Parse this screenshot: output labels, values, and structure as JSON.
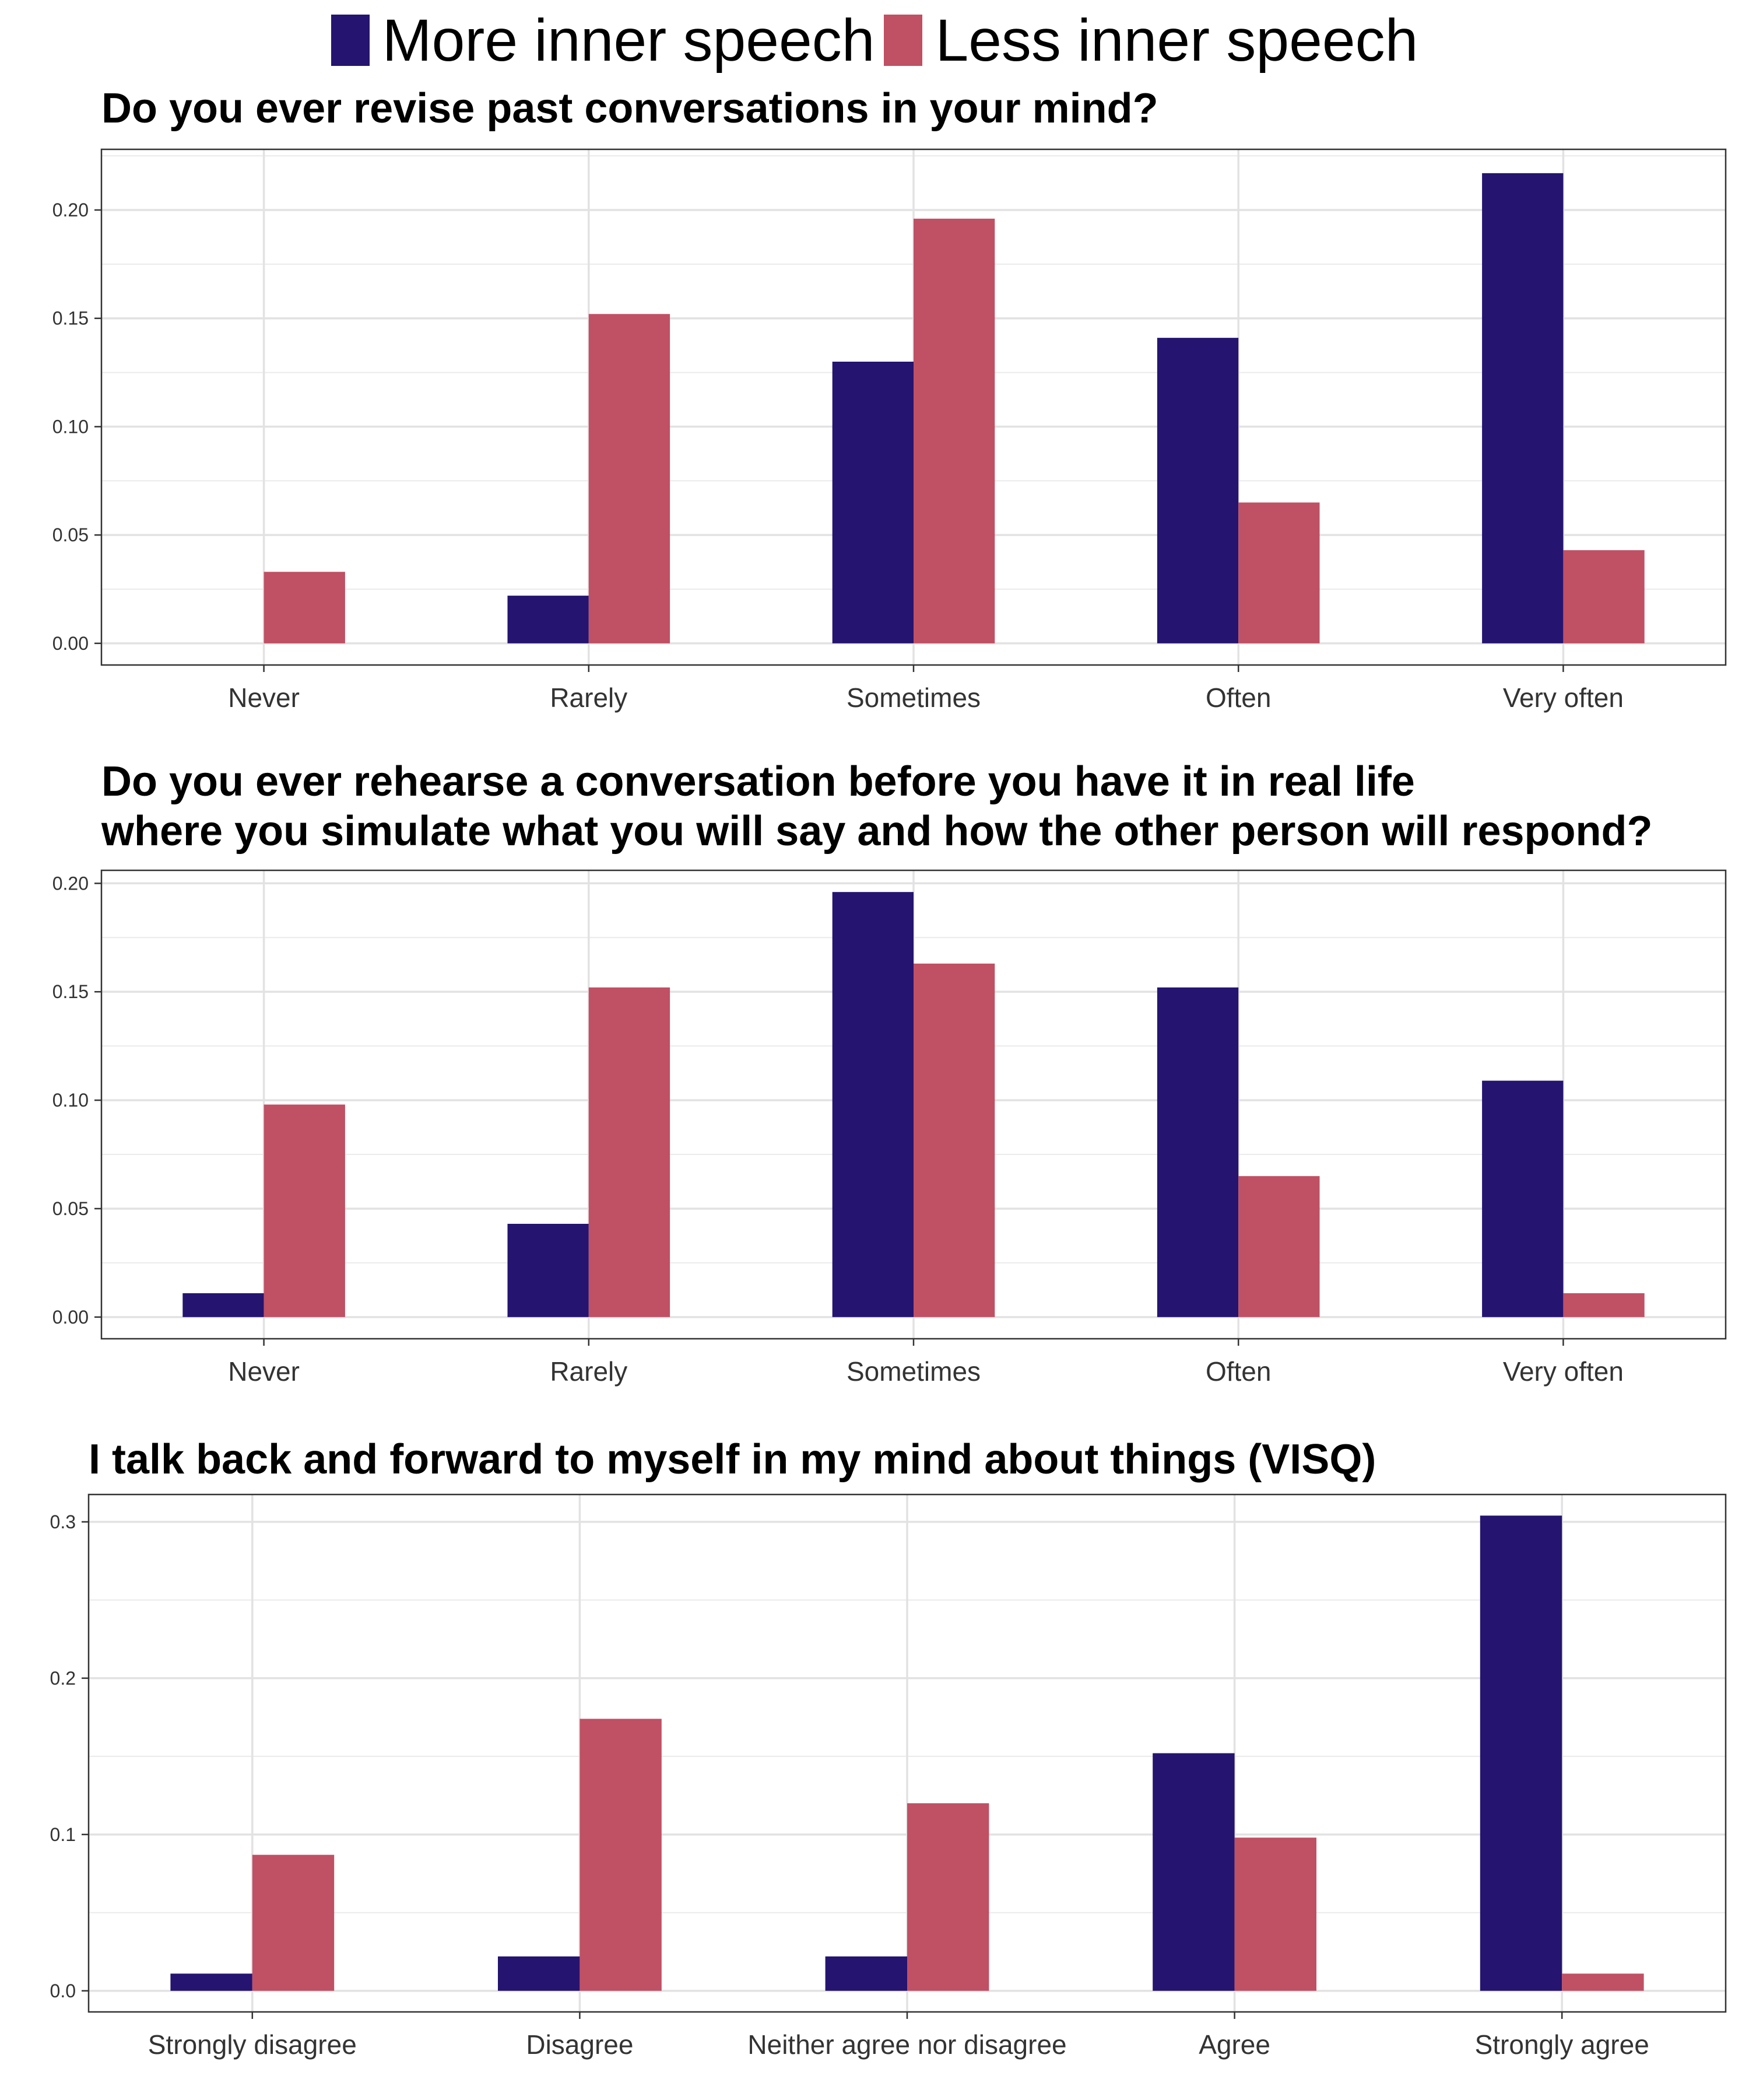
{
  "legend": {
    "position": "top",
    "items": [
      {
        "label": "More inner speech",
        "color": "#251470"
      },
      {
        "label": "Less inner speech",
        "color": "#c05064"
      }
    ]
  },
  "chart_data": [
    {
      "type": "bar",
      "title": [
        "Do you ever revise past conversations in your mind?"
      ],
      "categories": [
        "Never",
        "Rarely",
        "Sometimes",
        "Often",
        "Very often"
      ],
      "series": [
        {
          "name": "More inner speech",
          "values": [
            0.0,
            0.022,
            0.13,
            0.141,
            0.217
          ]
        },
        {
          "name": "Less inner speech",
          "values": [
            0.033,
            0.152,
            0.196,
            0.065,
            0.043
          ]
        }
      ],
      "yticks": [
        "0.00",
        "0.05",
        "0.10",
        "0.15",
        "0.20"
      ],
      "ylim": [
        -0.01,
        0.228
      ],
      "xlabel": "",
      "ylabel": "",
      "grid": true
    },
    {
      "type": "bar",
      "title": [
        "Do you ever rehearse a conversation before you have it in real life",
        "where you simulate what you will say and how the other person will respond?"
      ],
      "categories": [
        "Never",
        "Rarely",
        "Sometimes",
        "Often",
        "Very often"
      ],
      "series": [
        {
          "name": "More inner speech",
          "values": [
            0.011,
            0.043,
            0.196,
            0.152,
            0.109
          ]
        },
        {
          "name": "Less inner speech",
          "values": [
            0.098,
            0.152,
            0.163,
            0.065,
            0.011
          ]
        }
      ],
      "yticks": [
        "0.00",
        "0.05",
        "0.10",
        "0.15",
        "0.20"
      ],
      "ylim": [
        -0.01,
        0.206
      ],
      "xlabel": "",
      "ylabel": "",
      "grid": true
    },
    {
      "type": "bar",
      "title": [
        "I talk back and forward to myself in my mind about things (VISQ)"
      ],
      "categories": [
        "Strongly disagree",
        "Disagree",
        "Neither agree nor disagree",
        "Agree",
        "Strongly agree"
      ],
      "series": [
        {
          "name": "More inner speech",
          "values": [
            0.011,
            0.022,
            0.022,
            0.152,
            0.304
          ]
        },
        {
          "name": "Less inner speech",
          "values": [
            0.087,
            0.174,
            0.12,
            0.098,
            0.011
          ]
        }
      ],
      "yticks": [
        "0.0",
        "0.1",
        "0.2",
        "0.3"
      ],
      "ylim": [
        -0.0135,
        0.3175
      ],
      "xlabel": "",
      "ylabel": "",
      "grid": true
    }
  ]
}
